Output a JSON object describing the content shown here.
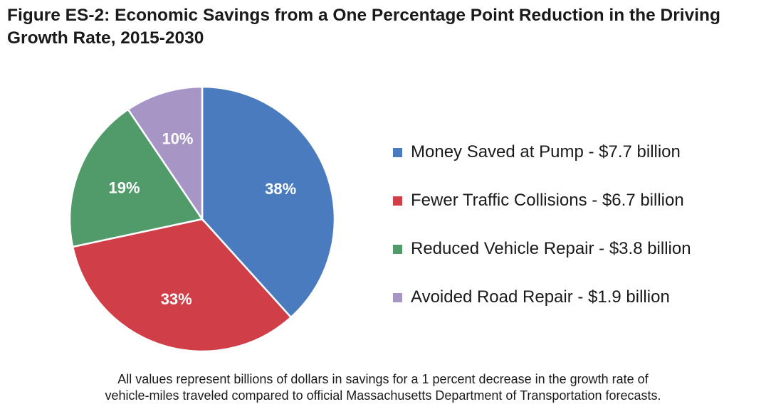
{
  "title": "Figure ES-2: Economic Savings from a One Percentage Point Reduction in the Driving Growth Rate, 2015-2030",
  "footnote": {
    "line1": "All values represent billions of dollars in savings for a 1 percent decrease in the growth rate of",
    "line2": "vehicle-miles traveled compared to official Massachusetts Department of Transportation forecasts."
  },
  "chart_data": {
    "type": "pie",
    "title": "Figure ES-2: Economic Savings from a One Percentage Point Reduction in the Driving Growth Rate, 2015-2030",
    "legend_position": "right",
    "slices": [
      {
        "label": "Money Saved at Pump - $7.7 billion",
        "value": 7.7,
        "percent_label": "38%",
        "color": "#4a7bbf"
      },
      {
        "label": "Fewer Traffic Collisions - $6.7 billion",
        "value": 6.7,
        "percent_label": "33%",
        "color": "#d03e47"
      },
      {
        "label": "Reduced Vehicle Repair - $3.8 billion",
        "value": 3.8,
        "percent_label": "19%",
        "color": "#519b6b"
      },
      {
        "label": "Avoided Road Repair - $1.9 billion",
        "value": 1.9,
        "percent_label": "10%",
        "color": "#a795c6"
      }
    ]
  }
}
